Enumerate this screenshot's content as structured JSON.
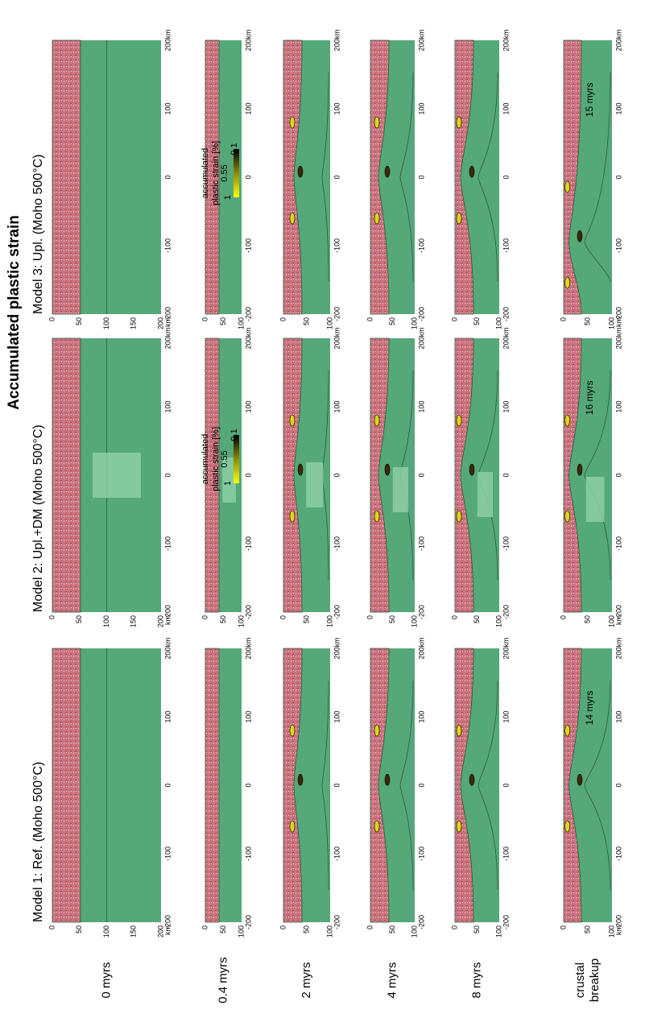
{
  "title": "Accumulated plastic strain",
  "models": [
    {
      "title": "Model 1: Ref. (Moho 500°C)",
      "breakup_label": "14 myrs"
    },
    {
      "title": "Model 2: Upl.+DM (Moho 500°C)",
      "breakup_label": "16 myrs"
    },
    {
      "title": "Model 3: Upl. (Moho 500°C)",
      "breakup_label": "15 myrs"
    }
  ],
  "rows": [
    [
      "0 myrs"
    ],
    [
      "0.4 myrs"
    ],
    [
      "2 myrs"
    ],
    [
      "4 myrs"
    ],
    [
      "8 myrs"
    ],
    [
      "crustal",
      "breakup"
    ]
  ],
  "x_tick_labels": [
    "-200",
    "-100",
    "0",
    "100",
    "200km"
  ],
  "depth_tick_labels_full": [
    "0",
    "50",
    "100",
    "150",
    "200",
    "km"
  ],
  "depth_tick_labels_short": [
    "0",
    "50",
    "100"
  ],
  "colorbar": {
    "label_lines": [
      "accumulated",
      "plastic strain [%]"
    ],
    "tick_labels": [
      "1",
      "0.55",
      "0.1"
    ]
  }
}
